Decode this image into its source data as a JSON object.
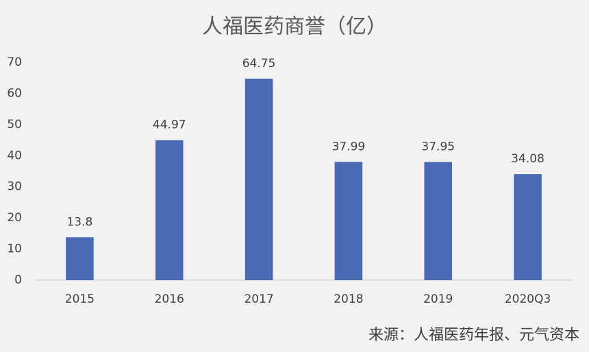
{
  "chart_data": {
    "type": "bar",
    "title": "人福医药商誉（亿）",
    "categories": [
      "2015",
      "2016",
      "2017",
      "2018",
      "2019",
      "2020Q3"
    ],
    "values": [
      13.8,
      44.97,
      64.75,
      37.99,
      37.95,
      34.08
    ],
    "color": "#4a6ab4",
    "ylim": [
      0,
      70
    ],
    "yticks": [
      0,
      10,
      20,
      30,
      40,
      50,
      60,
      70
    ],
    "grid": false,
    "note": "来源：人福医药年报、元气资本"
  }
}
